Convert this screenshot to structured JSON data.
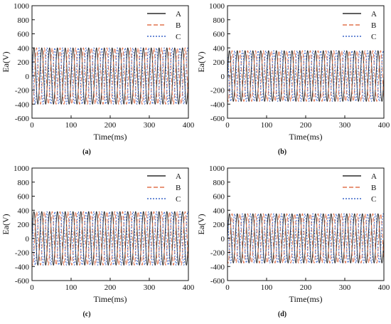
{
  "chart_data": [
    {
      "type": "line",
      "caption": "(a)",
      "xlabel": "Time(ms)",
      "ylabel": "Ea(V)",
      "xlim": [
        0,
        400
      ],
      "ylim": [
        -600,
        1000
      ],
      "xticks": [
        "0",
        "100",
        "200",
        "300",
        "400"
      ],
      "yticks": [
        "-600",
        "-400",
        "-200",
        "0",
        "200",
        "400",
        "600",
        "800",
        "1000"
      ],
      "legend_position": "top-right",
      "frequency_hz": 50,
      "series": [
        {
          "name": "A",
          "amplitude": 400,
          "phase_deg": 0,
          "color": "#2b2b2b",
          "dash": "solid"
        },
        {
          "name": "B",
          "amplitude": 400,
          "phase_deg": -120,
          "color": "#e0734f",
          "dash": "dashed"
        },
        {
          "name": "C",
          "amplitude": 400,
          "phase_deg": 120,
          "color": "#3b66c9",
          "dash": "dotted"
        }
      ]
    },
    {
      "type": "line",
      "caption": "(b)",
      "xlabel": "Time(ms)",
      "ylabel": "Ea(V)",
      "xlim": [
        0,
        400
      ],
      "ylim": [
        -600,
        1000
      ],
      "xticks": [
        "0",
        "100",
        "200",
        "300",
        "400"
      ],
      "yticks": [
        "-600",
        "-400",
        "-200",
        "0",
        "200",
        "400",
        "600",
        "800",
        "1000"
      ],
      "legend_position": "top-right",
      "frequency_hz": 50,
      "series": [
        {
          "name": "A",
          "amplitude": 360,
          "phase_deg": 0,
          "color": "#2b2b2b",
          "dash": "solid"
        },
        {
          "name": "B",
          "amplitude": 360,
          "phase_deg": -120,
          "color": "#e0734f",
          "dash": "dashed"
        },
        {
          "name": "C",
          "amplitude": 360,
          "phase_deg": 120,
          "color": "#3b66c9",
          "dash": "dotted"
        }
      ]
    },
    {
      "type": "line",
      "caption": "(c)",
      "xlabel": "Time(ms)",
      "ylabel": "Ea(V)",
      "xlim": [
        0,
        400
      ],
      "ylim": [
        -600,
        1000
      ],
      "xticks": [
        "0",
        "100",
        "200",
        "300",
        "400"
      ],
      "yticks": [
        "-600",
        "-400",
        "-200",
        "0",
        "200",
        "400",
        "600",
        "800",
        "1000"
      ],
      "legend_position": "top-right",
      "frequency_hz": 50,
      "series": [
        {
          "name": "A",
          "amplitude": 380,
          "phase_deg": 0,
          "color": "#2b2b2b",
          "dash": "solid"
        },
        {
          "name": "B",
          "amplitude": 380,
          "phase_deg": -120,
          "color": "#e0734f",
          "dash": "dashed"
        },
        {
          "name": "C",
          "amplitude": 380,
          "phase_deg": 120,
          "color": "#3b66c9",
          "dash": "dotted"
        }
      ]
    },
    {
      "type": "line",
      "caption": "(d)",
      "xlabel": "Time(ms)",
      "ylabel": "Ea(V)",
      "xlim": [
        0,
        400
      ],
      "ylim": [
        -600,
        1000
      ],
      "xticks": [
        "0",
        "100",
        "200",
        "300",
        "400"
      ],
      "yticks": [
        "-600",
        "-400",
        "-200",
        "0",
        "200",
        "400",
        "600",
        "800",
        "1000"
      ],
      "legend_position": "top-right",
      "frequency_hz": 50,
      "series": [
        {
          "name": "A",
          "amplitude": 350,
          "phase_deg": 0,
          "color": "#2b2b2b",
          "dash": "solid"
        },
        {
          "name": "B",
          "amplitude": 350,
          "phase_deg": -120,
          "color": "#e0734f",
          "dash": "dashed"
        },
        {
          "name": "C",
          "amplitude": 350,
          "phase_deg": 120,
          "color": "#3b66c9",
          "dash": "dotted"
        }
      ]
    }
  ]
}
